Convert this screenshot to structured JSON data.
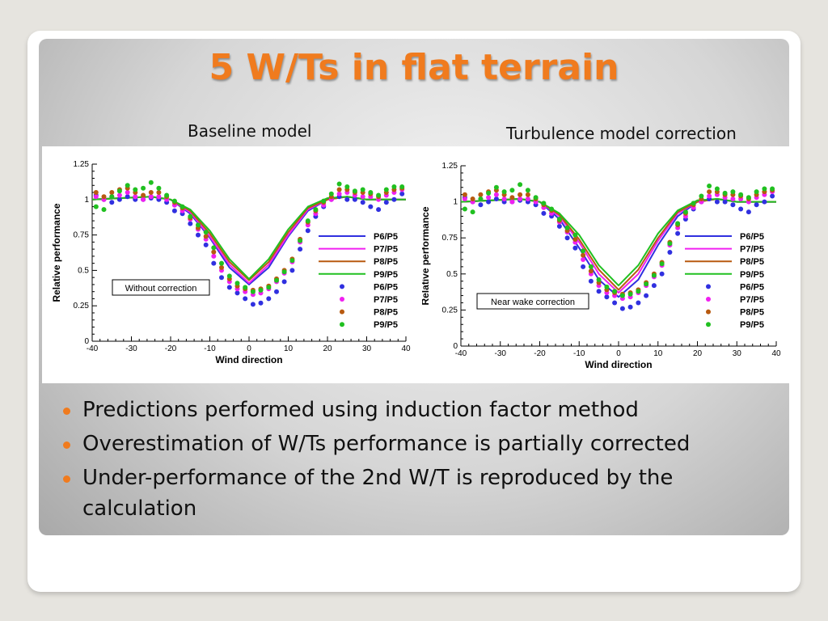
{
  "slide": {
    "title": "5 W/Ts in flat terrain",
    "subtitle_left": "Baseline model",
    "subtitle_right": "Turbulence model correction"
  },
  "bullets": [
    "Predictions performed using induction factor method",
    "Overestimation of W/Ts performance is partially corrected",
    "Under-performance of the 2nd W/T is reproduced by the calculation"
  ],
  "colors": {
    "title": "#f07b1e",
    "bullet": "#f07b1e",
    "P6": "#3030e0",
    "P7": "#f020f0",
    "P8": "#b85a10",
    "P9": "#20c020"
  },
  "chart_data": [
    {
      "type": "line",
      "annotation": "Without correction",
      "xlabel": "Wind direction",
      "ylabel": "Relative performance",
      "xlim": [
        -40,
        40
      ],
      "ylim": [
        0,
        1.25
      ],
      "xticks": [
        -40,
        -30,
        -20,
        -10,
        0,
        10,
        20,
        30,
        40
      ],
      "yticks": [
        0,
        0.25,
        0.5,
        0.75,
        1,
        1.25
      ],
      "legend_position": "right",
      "line_x": [
        -40,
        -25,
        -20,
        -15,
        -10,
        -5,
        0,
        5,
        10,
        15,
        20,
        25,
        30,
        40
      ],
      "lines": [
        {
          "name": "P6/P5",
          "color": "#3030e0",
          "values": [
            1.0,
            1.02,
            1.0,
            0.9,
            0.73,
            0.52,
            0.4,
            0.52,
            0.74,
            0.92,
            1.0,
            1.02,
            1.0,
            1.0
          ]
        },
        {
          "name": "P7/P5",
          "color": "#f020f0",
          "values": [
            1.0,
            1.02,
            1.0,
            0.91,
            0.74,
            0.54,
            0.41,
            0.54,
            0.75,
            0.93,
            1.0,
            1.02,
            1.0,
            1.0
          ]
        },
        {
          "name": "P8/P5",
          "color": "#b85a10",
          "values": [
            1.0,
            1.02,
            1.0,
            0.92,
            0.76,
            0.56,
            0.43,
            0.56,
            0.77,
            0.94,
            1.0,
            1.02,
            1.0,
            1.0
          ]
        },
        {
          "name": "P9/P5",
          "color": "#20c020",
          "values": [
            1.0,
            1.02,
            1.0,
            0.93,
            0.78,
            0.58,
            0.44,
            0.58,
            0.79,
            0.95,
            1.01,
            1.02,
            1.0,
            1.0
          ]
        }
      ],
      "points_x": [
        -39,
        -37,
        -35,
        -33,
        -31,
        -29,
        -27,
        -25,
        -23,
        -21,
        -19,
        -17,
        -15,
        -13,
        -11,
        -9,
        -7,
        -5,
        -3,
        -1,
        1,
        3,
        5,
        7,
        9,
        11,
        13,
        15,
        17,
        19,
        21,
        23,
        25,
        27,
        29,
        31,
        33,
        35,
        37,
        39
      ],
      "points": [
        {
          "name": "P6/P5",
          "color": "#3030e0",
          "values": [
            1.03,
            1.0,
            0.98,
            1.0,
            1.02,
            1.0,
            1.0,
            1.01,
            1.0,
            0.98,
            0.92,
            0.9,
            0.83,
            0.75,
            0.68,
            0.55,
            0.45,
            0.38,
            0.34,
            0.3,
            0.26,
            0.27,
            0.3,
            0.35,
            0.42,
            0.5,
            0.65,
            0.78,
            0.88,
            0.95,
            1.0,
            1.02,
            1.0,
            1.0,
            0.98,
            0.95,
            0.93,
            0.98,
            1.0,
            1.04
          ]
        },
        {
          "name": "P7/P5",
          "color": "#f020f0",
          "values": [
            1.02,
            1.0,
            1.02,
            1.03,
            1.05,
            1.02,
            1.0,
            1.02,
            1.02,
            1.0,
            0.96,
            0.92,
            0.86,
            0.79,
            0.72,
            0.6,
            0.5,
            0.42,
            0.37,
            0.35,
            0.33,
            0.34,
            0.37,
            0.42,
            0.48,
            0.56,
            0.7,
            0.82,
            0.9,
            0.96,
            1.0,
            1.04,
            1.05,
            1.03,
            1.02,
            1.02,
            1.0,
            1.03,
            1.05,
            1.07
          ]
        },
        {
          "name": "P8/P5",
          "color": "#b85a10",
          "values": [
            1.05,
            1.02,
            1.05,
            1.07,
            1.08,
            1.05,
            1.03,
            1.05,
            1.05,
            1.02,
            0.98,
            0.94,
            0.87,
            0.8,
            0.74,
            0.63,
            0.52,
            0.44,
            0.39,
            0.37,
            0.36,
            0.37,
            0.39,
            0.44,
            0.5,
            0.58,
            0.72,
            0.84,
            0.92,
            0.98,
            1.02,
            1.07,
            1.07,
            1.05,
            1.05,
            1.04,
            1.02,
            1.05,
            1.07,
            1.08
          ]
        },
        {
          "name": "P9/P5",
          "color": "#20c020",
          "values": [
            0.95,
            0.93,
            1.02,
            1.06,
            1.1,
            1.07,
            1.08,
            1.12,
            1.08,
            1.03,
            0.99,
            0.95,
            0.88,
            0.82,
            0.77,
            0.66,
            0.55,
            0.46,
            0.41,
            0.38,
            0.35,
            0.36,
            0.38,
            0.43,
            0.49,
            0.57,
            0.71,
            0.85,
            0.93,
            0.99,
            1.04,
            1.11,
            1.09,
            1.06,
            1.07,
            1.05,
            1.03,
            1.07,
            1.09,
            1.09
          ]
        }
      ]
    },
    {
      "type": "line",
      "annotation": "Near wake correction",
      "xlabel": "Wind direction",
      "ylabel": "Relative performance",
      "xlim": [
        -40,
        40
      ],
      "ylim": [
        0,
        1.25
      ],
      "xticks": [
        -40,
        -30,
        -20,
        -10,
        0,
        10,
        20,
        30,
        40
      ],
      "yticks": [
        0,
        0.25,
        0.5,
        0.75,
        1,
        1.25
      ],
      "legend_position": "right",
      "line_x": [
        -40,
        -25,
        -20,
        -15,
        -10,
        -5,
        0,
        5,
        10,
        15,
        20,
        25,
        30,
        40
      ],
      "lines": [
        {
          "name": "P6/P5",
          "color": "#3030e0",
          "values": [
            1.0,
            1.02,
            1.0,
            0.88,
            0.68,
            0.46,
            0.34,
            0.46,
            0.7,
            0.9,
            1.0,
            1.02,
            1.0,
            1.0
          ]
        },
        {
          "name": "P7/P5",
          "color": "#f020f0",
          "values": [
            1.0,
            1.02,
            1.0,
            0.9,
            0.72,
            0.5,
            0.37,
            0.5,
            0.73,
            0.92,
            1.0,
            1.02,
            1.0,
            1.0
          ]
        },
        {
          "name": "P8/P5",
          "color": "#b85a10",
          "values": [
            1.0,
            1.02,
            1.0,
            0.91,
            0.74,
            0.53,
            0.39,
            0.53,
            0.75,
            0.93,
            1.0,
            1.02,
            1.0,
            1.0
          ]
        },
        {
          "name": "P9/P5",
          "color": "#20c020",
          "values": [
            1.0,
            1.02,
            1.0,
            0.92,
            0.77,
            0.56,
            0.42,
            0.56,
            0.78,
            0.94,
            1.01,
            1.02,
            1.0,
            1.0
          ]
        }
      ],
      "points_x": [
        -39,
        -37,
        -35,
        -33,
        -31,
        -29,
        -27,
        -25,
        -23,
        -21,
        -19,
        -17,
        -15,
        -13,
        -11,
        -9,
        -7,
        -5,
        -3,
        -1,
        1,
        3,
        5,
        7,
        9,
        11,
        13,
        15,
        17,
        19,
        21,
        23,
        25,
        27,
        29,
        31,
        33,
        35,
        37,
        39
      ],
      "points": [
        {
          "name": "P6/P5",
          "color": "#3030e0",
          "values": [
            1.03,
            1.0,
            0.98,
            1.0,
            1.02,
            1.0,
            1.0,
            1.01,
            1.0,
            0.98,
            0.92,
            0.9,
            0.83,
            0.75,
            0.68,
            0.55,
            0.45,
            0.38,
            0.34,
            0.3,
            0.26,
            0.27,
            0.3,
            0.35,
            0.42,
            0.5,
            0.65,
            0.78,
            0.88,
            0.95,
            1.0,
            1.02,
            1.0,
            1.0,
            0.98,
            0.95,
            0.93,
            0.98,
            1.0,
            1.04
          ]
        },
        {
          "name": "P7/P5",
          "color": "#f020f0",
          "values": [
            1.02,
            1.0,
            1.02,
            1.03,
            1.05,
            1.02,
            1.0,
            1.02,
            1.02,
            1.0,
            0.96,
            0.92,
            0.86,
            0.79,
            0.72,
            0.6,
            0.5,
            0.42,
            0.37,
            0.35,
            0.33,
            0.34,
            0.37,
            0.42,
            0.48,
            0.56,
            0.7,
            0.82,
            0.9,
            0.96,
            1.0,
            1.04,
            1.05,
            1.03,
            1.02,
            1.02,
            1.0,
            1.03,
            1.05,
            1.07
          ]
        },
        {
          "name": "P8/P5",
          "color": "#b85a10",
          "values": [
            1.05,
            1.02,
            1.05,
            1.07,
            1.08,
            1.05,
            1.03,
            1.05,
            1.05,
            1.02,
            0.98,
            0.94,
            0.87,
            0.8,
            0.74,
            0.63,
            0.52,
            0.44,
            0.39,
            0.37,
            0.36,
            0.37,
            0.39,
            0.44,
            0.5,
            0.58,
            0.72,
            0.84,
            0.92,
            0.98,
            1.02,
            1.07,
            1.07,
            1.05,
            1.05,
            1.04,
            1.02,
            1.05,
            1.07,
            1.08
          ]
        },
        {
          "name": "P9/P5",
          "color": "#20c020",
          "values": [
            0.95,
            0.93,
            1.02,
            1.06,
            1.1,
            1.07,
            1.08,
            1.12,
            1.08,
            1.03,
            0.99,
            0.95,
            0.88,
            0.82,
            0.77,
            0.66,
            0.55,
            0.46,
            0.41,
            0.38,
            0.35,
            0.36,
            0.38,
            0.43,
            0.49,
            0.57,
            0.71,
            0.85,
            0.93,
            0.99,
            1.04,
            1.11,
            1.09,
            1.06,
            1.07,
            1.05,
            1.03,
            1.07,
            1.09,
            1.09
          ]
        }
      ]
    }
  ]
}
